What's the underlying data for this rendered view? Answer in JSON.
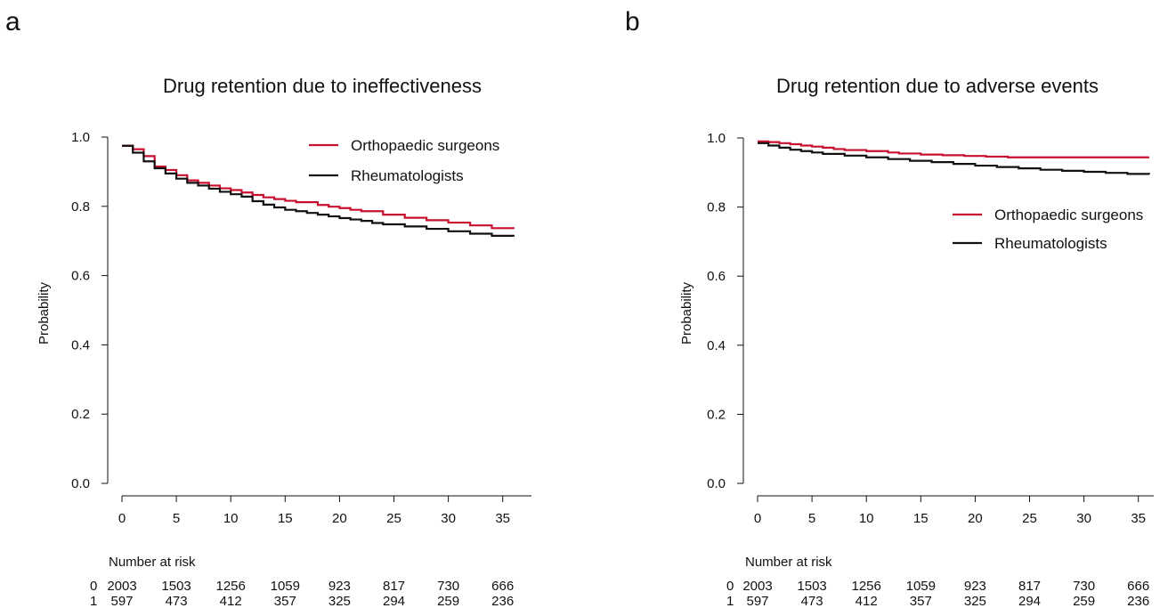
{
  "panels": [
    {
      "letter": "a",
      "title": "Drug retention due to ineffectiveness",
      "ylabel": "Probability"
    },
    {
      "letter": "b",
      "title": "Drug retention due to adverse events",
      "ylabel": "Probability"
    }
  ],
  "risk_table": {
    "heading": "Number at risk",
    "rows": [
      {
        "label": "0",
        "values": [
          "2003",
          "1503",
          "1256",
          "1059",
          "923",
          "817",
          "730",
          "666"
        ]
      },
      {
        "label": "1",
        "values": [
          "597",
          "473",
          "412",
          "357",
          "325",
          "294",
          "259",
          "236"
        ]
      }
    ]
  },
  "colors": {
    "orthopaedic": "#c8102e",
    "rheumatologists": "#111111"
  },
  "chart_data": [
    {
      "type": "line",
      "title": "Drug retention due to ineffectiveness",
      "xlabel": "",
      "ylabel": "Probability",
      "xlim": [
        0,
        36
      ],
      "ylim": [
        0,
        1
      ],
      "x_ticks": [
        0,
        5,
        10,
        15,
        20,
        25,
        30,
        35
      ],
      "y_ticks": [
        "0.0",
        "0.2",
        "0.4",
        "0.6",
        "0.8",
        "1.0"
      ],
      "legend_position": "top-right",
      "grid": false,
      "series": [
        {
          "name": "Orthopaedic surgeons",
          "color": "#c8102e",
          "step": true,
          "x": [
            0,
            1,
            2,
            3,
            4,
            5,
            6,
            7,
            8,
            9,
            10,
            11,
            12,
            13,
            14,
            15,
            16,
            18,
            19,
            20,
            21,
            22,
            24,
            26,
            28,
            30,
            32,
            34,
            36
          ],
          "y": [
            0.975,
            0.965,
            0.945,
            0.915,
            0.905,
            0.89,
            0.875,
            0.868,
            0.86,
            0.852,
            0.847,
            0.84,
            0.833,
            0.826,
            0.821,
            0.816,
            0.812,
            0.804,
            0.799,
            0.795,
            0.79,
            0.786,
            0.776,
            0.767,
            0.76,
            0.753,
            0.745,
            0.737,
            0.735
          ]
        },
        {
          "name": "Rheumatologists",
          "color": "#111111",
          "step": true,
          "x": [
            0,
            1,
            2,
            3,
            4,
            5,
            6,
            7,
            8,
            9,
            10,
            11,
            12,
            13,
            14,
            15,
            16,
            17,
            18,
            19,
            20,
            21,
            22,
            23,
            24,
            26,
            28,
            30,
            32,
            34,
            36
          ],
          "y": [
            0.975,
            0.955,
            0.93,
            0.91,
            0.895,
            0.88,
            0.868,
            0.86,
            0.851,
            0.842,
            0.835,
            0.828,
            0.815,
            0.805,
            0.797,
            0.79,
            0.786,
            0.781,
            0.776,
            0.771,
            0.766,
            0.762,
            0.758,
            0.752,
            0.748,
            0.742,
            0.735,
            0.728,
            0.721,
            0.715,
            0.713
          ]
        }
      ]
    },
    {
      "type": "line",
      "title": "Drug retention due to adverse events",
      "xlabel": "",
      "ylabel": "Probability",
      "xlim": [
        0,
        36
      ],
      "ylim": [
        0,
        1
      ],
      "x_ticks": [
        0,
        5,
        10,
        15,
        20,
        25,
        30,
        35
      ],
      "y_ticks": [
        "0.0",
        "0.2",
        "0.4",
        "0.6",
        "0.8",
        "1.0"
      ],
      "legend_position": "right",
      "grid": false,
      "series": [
        {
          "name": "Orthopaedic surgeons",
          "color": "#c8102e",
          "step": true,
          "x": [
            0,
            1,
            2,
            3,
            4,
            5,
            6,
            7,
            8,
            10,
            12,
            13,
            15,
            17,
            19,
            21,
            23,
            25,
            36
          ],
          "y": [
            0.99,
            0.988,
            0.985,
            0.982,
            0.978,
            0.975,
            0.972,
            0.968,
            0.965,
            0.962,
            0.958,
            0.955,
            0.952,
            0.95,
            0.948,
            0.946,
            0.944,
            0.944,
            0.944
          ]
        },
        {
          "name": "Rheumatologists",
          "color": "#111111",
          "step": true,
          "x": [
            0,
            1,
            2,
            3,
            4,
            5,
            6,
            8,
            10,
            12,
            14,
            16,
            18,
            20,
            22,
            24,
            26,
            28,
            30,
            32,
            34,
            36
          ],
          "y": [
            0.985,
            0.978,
            0.972,
            0.966,
            0.962,
            0.958,
            0.954,
            0.949,
            0.944,
            0.939,
            0.934,
            0.93,
            0.925,
            0.92,
            0.916,
            0.912,
            0.908,
            0.905,
            0.902,
            0.899,
            0.896,
            0.895
          ]
        }
      ]
    }
  ]
}
